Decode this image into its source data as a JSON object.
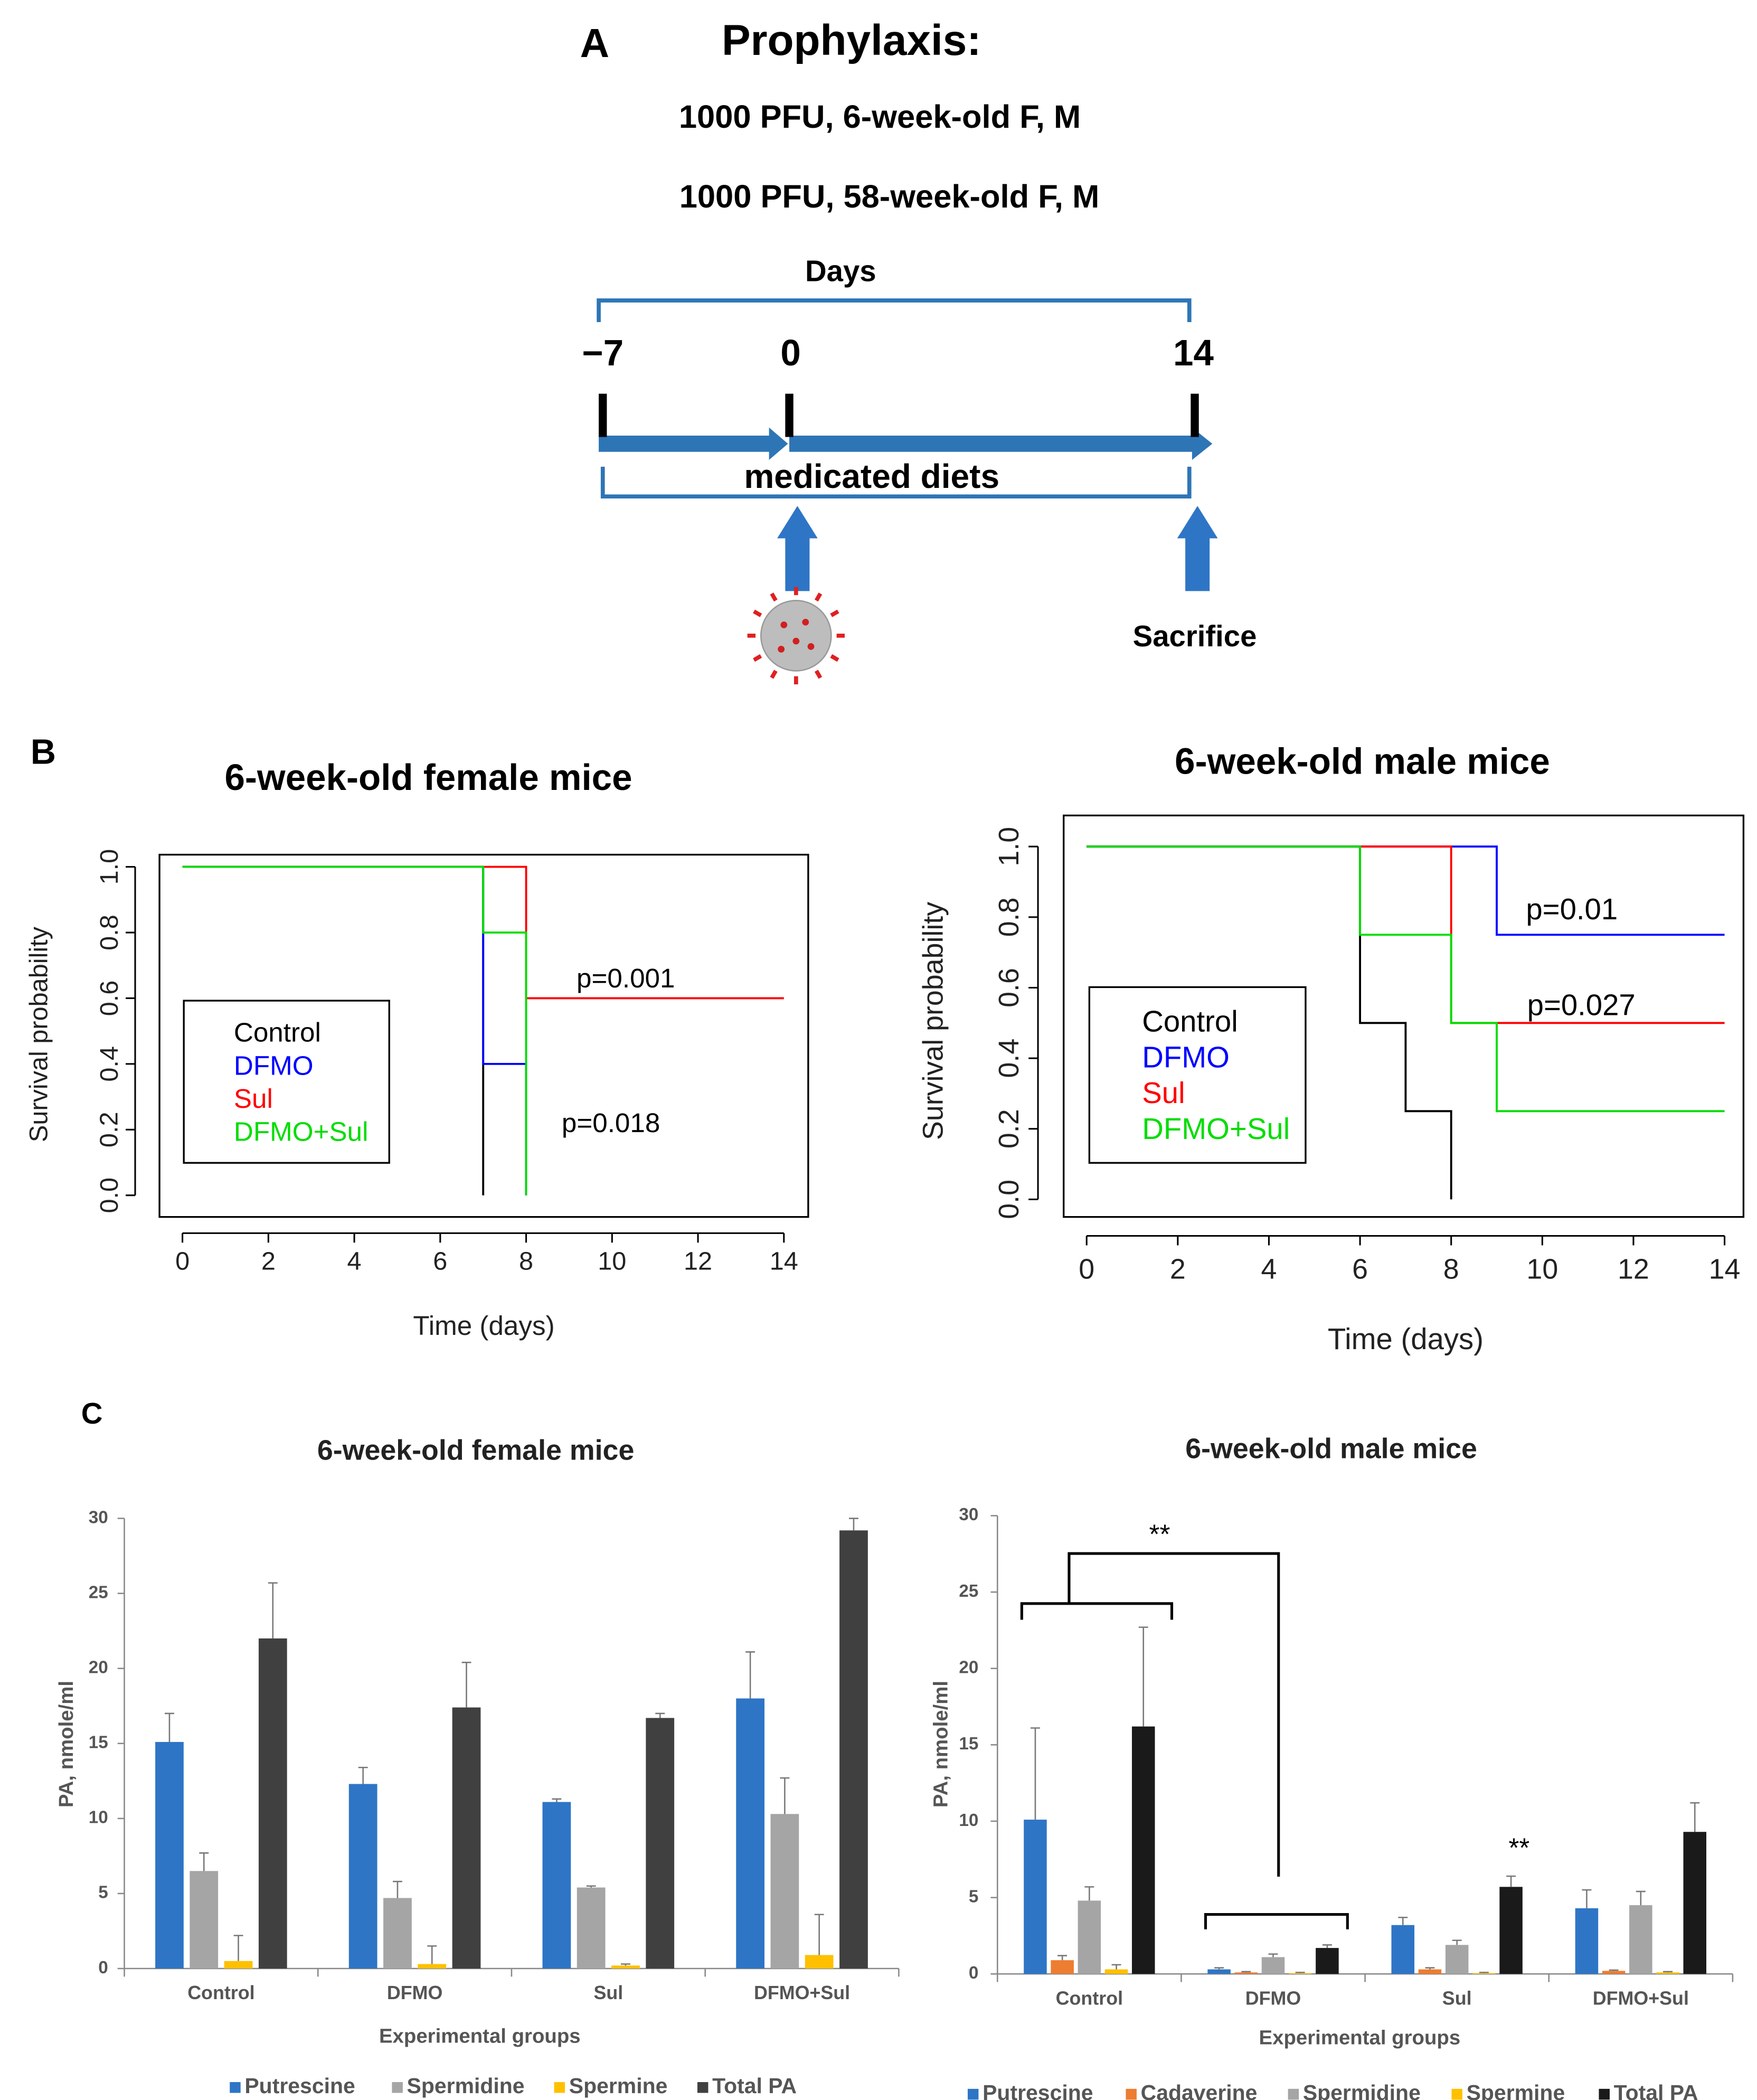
{
  "panel_labels": [
    "A",
    "B",
    "C"
  ],
  "diagram": {
    "title": "Prophylaxis:",
    "conditions": [
      "1000 PFU, 6-week-old F, M",
      "1000 PFU, 58-week-old F, M"
    ],
    "axis_label": "Days",
    "day_labels": [
      "−7",
      "0",
      "14"
    ],
    "diet_label": "medicated diets",
    "end_label": "Sacrifice"
  },
  "chart_data": [
    {
      "type": "line",
      "step": true,
      "title": "6-week-old female mice",
      "x_label": "Time (days)",
      "y_label": "Survival probability",
      "xlim": [
        0,
        14
      ],
      "xticks": [
        0,
        2,
        4,
        6,
        8,
        10,
        12,
        14
      ],
      "ylim": [
        0,
        1
      ],
      "yticks": [
        {
          "value": 0,
          "label": "0.0"
        },
        0.2,
        0.4,
        0.6,
        0.8,
        {
          "value": 1,
          "label": "1.0"
        }
      ],
      "legend": "lower left",
      "series": [
        {
          "name": "Control",
          "color": "#000000",
          "x": [
            0,
            7
          ],
          "values": [
            1,
            0
          ]
        },
        {
          "name": "DFMO",
          "color": "#0000ff",
          "x": [
            0,
            7,
            8
          ],
          "values": [
            1,
            0.4,
            0
          ]
        },
        {
          "name": "Sul",
          "color": "#ff0000",
          "x": [
            0,
            8,
            14
          ],
          "values": [
            1,
            0.6,
            0.6
          ]
        },
        {
          "name": "DFMO+Sul",
          "color": "#00dd00",
          "x": [
            0,
            7,
            8
          ],
          "values": [
            1,
            0.8,
            0
          ]
        }
      ],
      "annotations": [
        "p=0.001",
        "p=0.018"
      ]
    },
    {
      "type": "line",
      "step": true,
      "title": "6-week-old male mice",
      "x_label": "Time (days)",
      "y_label": "Survival probability",
      "xlim": [
        0,
        14
      ],
      "xticks": [
        0,
        2,
        4,
        6,
        8,
        10,
        12,
        14
      ],
      "ylim": [
        0,
        1
      ],
      "yticks": [
        {
          "value": 0,
          "label": "0.0"
        },
        0.2,
        0.4,
        0.6,
        0.8,
        {
          "value": 1,
          "label": "1.0"
        }
      ],
      "legend": "lower left",
      "series": [
        {
          "name": "Control",
          "color": "#000000",
          "x": [
            0,
            6,
            7,
            8
          ],
          "values": [
            1,
            0.5,
            0.25,
            0
          ]
        },
        {
          "name": "DFMO",
          "color": "#0000ff",
          "x": [
            0,
            9,
            14
          ],
          "values": [
            1,
            0.75,
            0.75
          ]
        },
        {
          "name": "Sul",
          "color": "#ff0000",
          "x": [
            0,
            8,
            14
          ],
          "values": [
            1,
            0.5,
            0.5
          ]
        },
        {
          "name": "DFMO+Sul",
          "color": "#00dd00",
          "x": [
            0,
            6,
            8,
            9,
            14
          ],
          "values": [
            1,
            0.75,
            0.5,
            0.25,
            0.25
          ]
        }
      ],
      "annotations": [
        "p=0.01",
        "p=0.027"
      ]
    },
    {
      "type": "bar",
      "title": "6-week-old female mice",
      "x_label": "Experimental groups",
      "y_label": "PA, nmole/ml",
      "categories": [
        "Control",
        "DFMO",
        "Sul",
        "DFMO+Sul"
      ],
      "ylim": [
        0,
        30
      ],
      "yticks": [
        0,
        5,
        10,
        15,
        20,
        25,
        30
      ],
      "legend": "bottom",
      "series": [
        {
          "name": "Putrescine",
          "color": "#2e75c6",
          "values": [
            15.1,
            12.3,
            11.1,
            18.0
          ],
          "errors": [
            1.9,
            1.1,
            0.2,
            3.1
          ]
        },
        {
          "name": "Spermidine",
          "color": "#a5a5a5",
          "values": [
            6.5,
            4.7,
            5.4,
            10.3
          ],
          "errors": [
            1.2,
            1.1,
            0.1,
            2.4
          ]
        },
        {
          "name": "Spermine",
          "color": "#ffc000",
          "values": [
            0.5,
            0.3,
            0.2,
            0.9
          ],
          "errors": [
            1.7,
            1.2,
            0.1,
            2.7
          ]
        },
        {
          "name": "Total PA",
          "color": "#404040",
          "values": [
            22.0,
            17.4,
            16.7,
            29.2
          ],
          "errors": [
            3.7,
            3.0,
            0.3,
            0.8
          ]
        }
      ]
    },
    {
      "type": "bar",
      "title": "6-week-old male mice",
      "x_label": "Experimental groups",
      "y_label": "PA, nmole/ml",
      "categories": [
        "Control",
        "DFMO",
        "Sul",
        "DFMO+Sul"
      ],
      "ylim": [
        0,
        30
      ],
      "yticks": [
        0,
        5,
        10,
        15,
        20,
        25,
        30
      ],
      "legend": "bottom",
      "series": [
        {
          "name": "Putrescine",
          "color": "#2e75c6",
          "values": [
            10.1,
            0.3,
            3.2,
            4.3
          ],
          "errors": [
            6.0,
            0.1,
            0.5,
            1.2
          ]
        },
        {
          "name": "Cadaverine",
          "color": "#ed7d31",
          "values": [
            0.9,
            0.1,
            0.3,
            0.2
          ],
          "errors": [
            0.3,
            0.05,
            0.1,
            0.05
          ]
        },
        {
          "name": "Spermidine",
          "color": "#a5a5a5",
          "values": [
            4.8,
            1.1,
            1.9,
            4.5
          ],
          "errors": [
            0.9,
            0.2,
            0.3,
            0.9
          ]
        },
        {
          "name": "Spermine",
          "color": "#ffc000",
          "values": [
            0.3,
            0.05,
            0.05,
            0.1
          ],
          "errors": [
            0.3,
            0.05,
            0.05,
            0.05
          ]
        },
        {
          "name": "Total PA",
          "color": "#1a1a1a",
          "values": [
            16.2,
            1.7,
            5.7,
            9.3
          ],
          "errors": [
            6.5,
            0.2,
            0.7,
            1.9
          ]
        }
      ],
      "annotations": [
        "**",
        "**"
      ]
    }
  ]
}
